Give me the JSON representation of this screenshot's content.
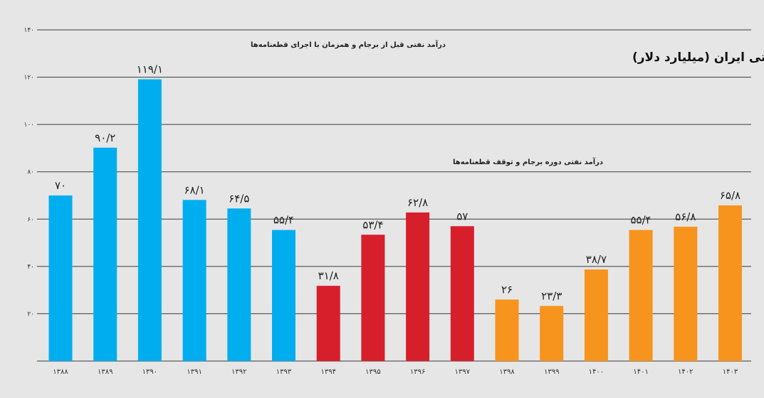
{
  "chart_data": {
    "type": "bar",
    "title": "درآمد نفتی ایران (میلیارد دلار)",
    "annotations": [
      "درآمد نفتی قبل از برجام و همزمان با اجرای قطعنامه‌ها",
      "درآمد نفتی دوره برجام و توقف قطعنامه‌ها"
    ],
    "categories": [
      "۱۳۸۸",
      "۱۳۸۹",
      "۱۳۹۰",
      "۱۳۹۱",
      "۱۳۹۲",
      "۱۳۹۳",
      "۱۳۹۴",
      "۱۳۹۵",
      "۱۳۹۶",
      "۱۳۹۷",
      "۱۳۹۸",
      "۱۳۹۹",
      "۱۴۰۰",
      "۱۴۰۱",
      "۱۴۰۲",
      "۱۴۰۳"
    ],
    "values": [
      70,
      90.2,
      119.1,
      68.1,
      64.5,
      55.4,
      31.8,
      53.4,
      62.8,
      57,
      26,
      23.3,
      38.7,
      55.4,
      56.8,
      65.8
    ],
    "data_labels": [
      "۷۰",
      "۹۰/۲",
      "۱۱۹/۱",
      "۶۸/۱",
      "۶۴/۵",
      "۵۵/۴",
      "۳۱/۸",
      "۵۳/۴",
      "۶۲/۸",
      "۵۷",
      "۲۶",
      "۲۳/۳",
      "۳۸/۷",
      "۵۵/۴",
      "۵۶/۸",
      "۶۵/۸"
    ],
    "bar_colors": [
      "#00aeef",
      "#00aeef",
      "#00aeef",
      "#00aeef",
      "#00aeef",
      "#00aeef",
      "#d71f2b",
      "#d71f2b",
      "#d71f2b",
      "#d71f2b",
      "#f7941d",
      "#f7941d",
      "#f7941d",
      "#f7941d",
      "#f7941d",
      "#f7941d"
    ],
    "ylim": [
      0,
      140
    ],
    "yticks": [
      20,
      40,
      60,
      80,
      100,
      120,
      140
    ],
    "ytick_labels": [
      "۲۰",
      "۴۰",
      "۶۰",
      "۸۰",
      "۱۰۰",
      "۱۲۰",
      "۱۴۰"
    ],
    "grid": true,
    "xlabel": "",
    "ylabel": ""
  }
}
